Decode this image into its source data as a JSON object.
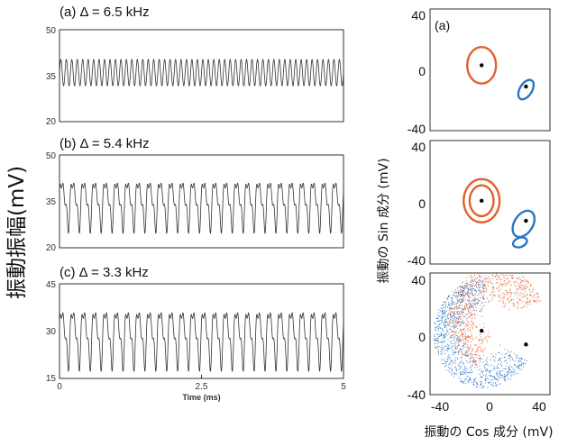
{
  "figure": {
    "left_ylabel": "振動振幅(mV)",
    "right_ylabel": "振動の Sin 成分 (mV)",
    "right_xlabel": "振動の Cos 成分 (mV)",
    "colors": {
      "trace": "#333333",
      "orange": "#e2602d",
      "blue": "#2a75c4",
      "center": "#000000"
    }
  },
  "chart_data": [
    {
      "type": "line",
      "title": "(a) Δ = 6.5 kHz",
      "ylim": [
        20,
        50
      ],
      "yticks": [
        "50",
        "35",
        "20"
      ],
      "xlim": [
        0,
        5
      ],
      "signal": {
        "mean": 36,
        "amp1": 4.3,
        "freq1": 8,
        "amp2": 0,
        "freq2": 0,
        "cycles": 52
      }
    },
    {
      "type": "line",
      "title": "(b) Δ = 5.4 kHz",
      "ylim": [
        20,
        50
      ],
      "yticks": [
        "50",
        "35",
        "20"
      ],
      "xlim": [
        0,
        5
      ],
      "signal": {
        "mean": 35,
        "amp1": 6.5,
        "freq1": 6,
        "amp2": 4.5,
        "freq2": 10,
        "cycles": 26
      }
    },
    {
      "type": "line",
      "title": "(c) Δ = 3.3 kHz",
      "ylim": [
        15,
        45
      ],
      "yticks": [
        "45",
        "30",
        "15"
      ],
      "xlim": [
        0,
        5
      ],
      "xticks": [
        "0",
        "2.5",
        "5"
      ],
      "xlabel": "Time (ms)",
      "signal": {
        "mean": 29,
        "amp1": 7.5,
        "freq1": 6,
        "amp2": 5,
        "freq2": 10,
        "cycles": 26
      }
    },
    {
      "type": "scatter",
      "label": "(a)",
      "xlim": [
        -50,
        50
      ],
      "ylim": [
        -40,
        40
      ],
      "yticks": [
        "40",
        "0",
        "-40"
      ],
      "orange_center": [
        -7,
        3
      ],
      "blue_center": [
        30,
        -11
      ],
      "orange_orbits": [
        [
          12,
          12
        ]
      ],
      "blue_orbits": [
        {
          "cx": 30,
          "cy": -13,
          "rx": 9,
          "ry": 4,
          "rot": -58
        }
      ]
    },
    {
      "type": "scatter",
      "label": "",
      "xlim": [
        -50,
        50
      ],
      "ylim": [
        -40,
        40
      ],
      "yticks": [
        "40",
        "0",
        "-40"
      ],
      "orange_center": [
        -7,
        1
      ],
      "blue_center": [
        30,
        -12
      ],
      "orange_orbits": [
        [
          15,
          14
        ],
        [
          10,
          10
        ]
      ],
      "blue_orbits": [
        {
          "cx": 28,
          "cy": -14,
          "rx": 12,
          "ry": 6,
          "rot": -58
        },
        {
          "cx": 25,
          "cy": -26,
          "rx": 6,
          "ry": 3,
          "rot": -20
        }
      ]
    },
    {
      "type": "scatter",
      "label": "",
      "xlim": [
        -50,
        50
      ],
      "ylim": [
        -40,
        40
      ],
      "yticks": [
        "40",
        "0",
        "-40"
      ],
      "xticks": [
        "-40",
        "0",
        "40"
      ],
      "orange_center": [
        -7,
        2
      ],
      "blue_center": [
        30,
        -7
      ],
      "orange_cloud": {
        "x0": 5,
        "y0": 10,
        "r1": 10,
        "r2": 40,
        "a0": 20,
        "a1": 250,
        "n": 900
      },
      "blue_cloud": {
        "x0": -5,
        "y0": 0,
        "r1": 15,
        "r2": 42,
        "a0": 90,
        "a1": 330,
        "n": 1000
      }
    }
  ]
}
